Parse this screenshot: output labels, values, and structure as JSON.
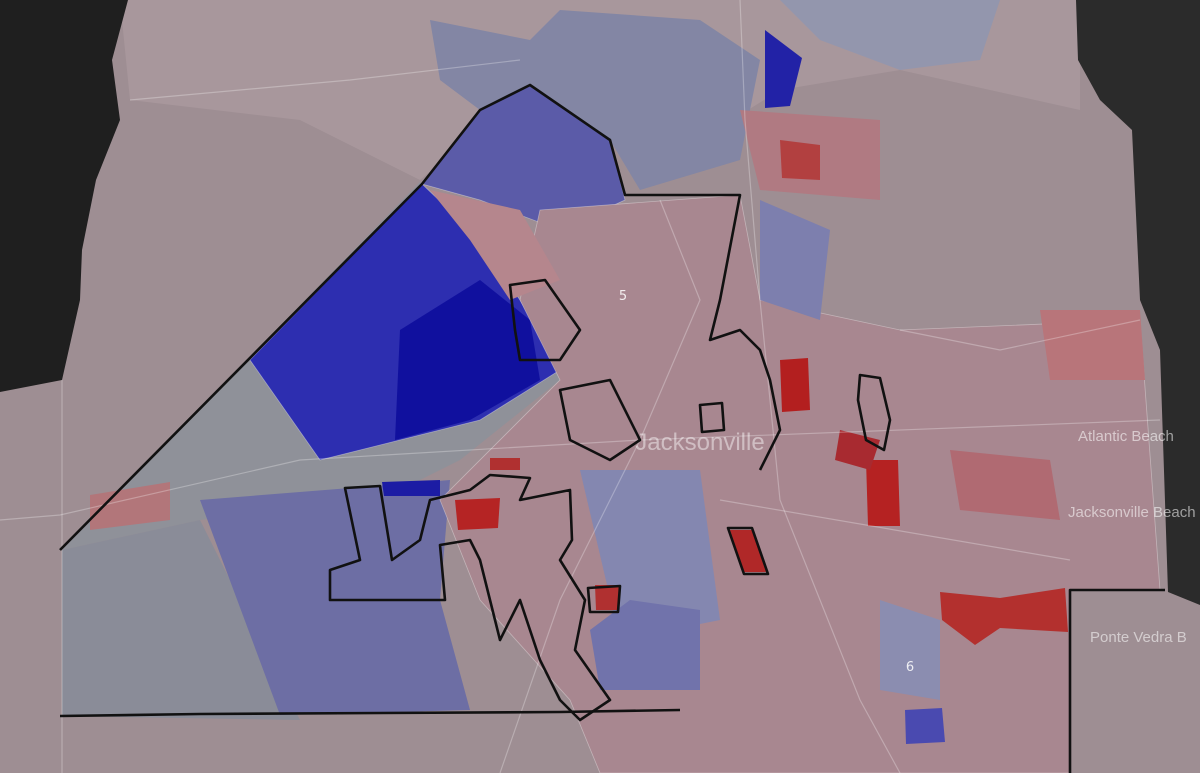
{
  "map": {
    "districts": [
      "5",
      "6"
    ],
    "places": {
      "city": "Jacksonville",
      "east_1": "Atlantic Beach",
      "east_2": "Jacksonville Beach",
      "east_3": "Ponte Vedra B"
    }
  }
}
